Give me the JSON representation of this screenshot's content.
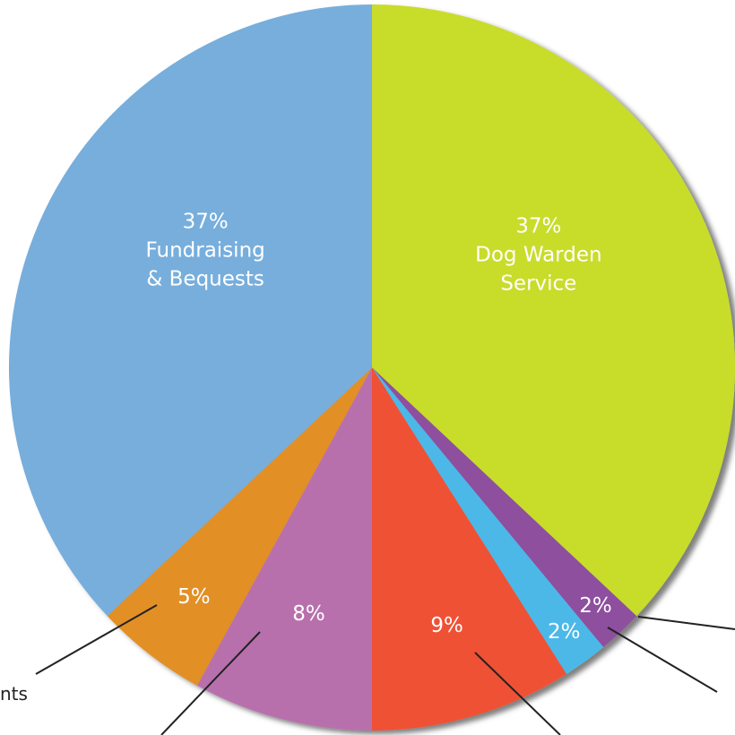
{
  "chart_data": {
    "type": "pie",
    "categories": [
      "Dog Warden Service",
      null,
      null,
      null,
      null,
      null,
      "Fundraising & Bequests"
    ],
    "values": [
      37,
      2,
      2,
      9,
      8,
      5,
      37
    ],
    "value_labels": [
      "37%",
      "2%",
      "2%",
      "9%",
      "8%",
      "5%",
      "37%"
    ],
    "colors": [
      "#c8dc2a",
      "#8e4f9e",
      "#4cb8e8",
      "#ef5134",
      "#b86fad",
      "#e28f27",
      "#77aedc"
    ],
    "annotations": [
      "nts"
    ]
  }
}
